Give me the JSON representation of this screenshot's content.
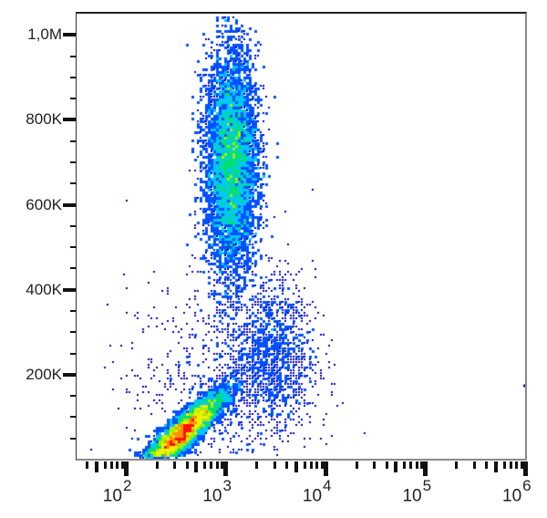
{
  "chart_data": {
    "type": "heatmap",
    "subtype": "flow-cytometry density scatter (pseudocolor dot plot)",
    "title": "",
    "xlabel": "",
    "ylabel": "",
    "x_scale": "log",
    "y_scale": "linear",
    "xlim": [
      31.6,
      1000000
    ],
    "ylim": [
      0,
      1050000
    ],
    "grid": false,
    "legend": null,
    "x_ticks": [
      {
        "value": 100,
        "label_base": "10",
        "label_exp": "2"
      },
      {
        "value": 1000,
        "label_base": "10",
        "label_exp": "3"
      },
      {
        "value": 10000,
        "label_base": "10",
        "label_exp": "4"
      },
      {
        "value": 100000,
        "label_base": "10",
        "label_exp": "5"
      },
      {
        "value": 1000000,
        "label_base": "10",
        "label_exp": "6"
      }
    ],
    "y_ticks": [
      {
        "value": 200000,
        "label": "200K"
      },
      {
        "value": 400000,
        "label": "400K"
      },
      {
        "value": 600000,
        "label": "600K"
      },
      {
        "value": 800000,
        "label": "800K"
      },
      {
        "value": 1000000,
        "label": "1,0M"
      }
    ],
    "colormap": [
      "#0000b4",
      "#0050ff",
      "#00c8ff",
      "#00e070",
      "#a0f000",
      "#f0f000",
      "#ff9000",
      "#ff1000"
    ],
    "populations": [
      {
        "name": "upper-population",
        "x_center_log10": 3.05,
        "x_sd_log10": 0.13,
        "y_center": 700000,
        "y_sd": 130000,
        "tilt": 0.0,
        "count": 9000,
        "peak_color": "yellow-orange"
      },
      {
        "name": "lower-population",
        "x_center_log10": 2.55,
        "x_sd_log10": 0.22,
        "y_center": 60000,
        "y_sd": 22000,
        "tilt": 45000,
        "count": 9000,
        "peak_color": "red"
      },
      {
        "name": "intermediate-scatter",
        "x_center_log10": 3.45,
        "x_sd_log10": 0.22,
        "y_center": 250000,
        "y_sd": 90000,
        "tilt": 0.0,
        "count": 1300,
        "peak_color": "blue"
      },
      {
        "name": "diffuse-background",
        "x_center_log10": 2.9,
        "x_sd_log10": 0.45,
        "y_center": 180000,
        "y_sd": 120000,
        "tilt": 0.0,
        "count": 700,
        "peak_color": "blue"
      }
    ],
    "outliers": [
      {
        "x": 1000000,
        "y": 175000
      }
    ]
  }
}
